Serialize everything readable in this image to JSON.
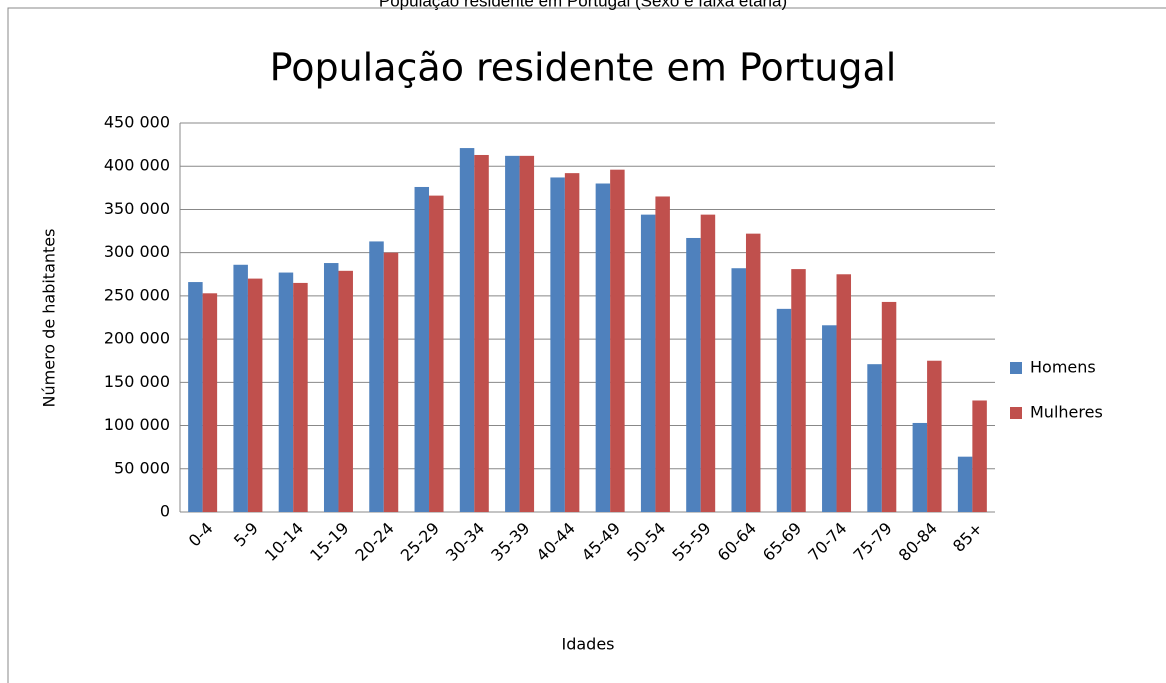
{
  "caption": "População residente em Portugal (Sexo e faixa etária)",
  "chart_data": {
    "type": "bar",
    "title": "População residente em Portugal",
    "x_label": "Idades",
    "y_label": "Número de habitantes",
    "categories": [
      "0-4",
      "5-9",
      "10-14",
      "15-19",
      "20-24",
      "25-29",
      "30-34",
      "35-39",
      "40-44",
      "45-49",
      "50-54",
      "55-59",
      "60-64",
      "65-69",
      "70-74",
      "75-79",
      "80-84",
      "85+"
    ],
    "series": [
      {
        "name": "Homens",
        "color": "#4f81bd",
        "values": [
          266000,
          286000,
          277000,
          288000,
          313000,
          376000,
          421000,
          412000,
          387000,
          380000,
          344000,
          317000,
          282000,
          235000,
          216000,
          171000,
          103000,
          64000
        ]
      },
      {
        "name": "Mulheres",
        "color": "#c0504d",
        "values": [
          253000,
          270000,
          265000,
          279000,
          300000,
          366000,
          413000,
          412000,
          392000,
          396000,
          365000,
          344000,
          322000,
          281000,
          275000,
          243000,
          175000,
          129000
        ]
      }
    ],
    "ylim": [
      0,
      450000
    ],
    "yticks": [
      0,
      {
        "value": 50000,
        "label": "50 000"
      },
      {
        "value": 100000,
        "label": "100 000"
      },
      {
        "value": 150000,
        "label": "150 000"
      },
      {
        "value": 200000,
        "label": "200 000"
      },
      {
        "value": 250000,
        "label": "250 000"
      },
      {
        "value": 300000,
        "label": "300 000"
      },
      {
        "value": 350000,
        "label": "350 000"
      },
      {
        "value": 400000,
        "label": "400 000"
      },
      {
        "value": 450000,
        "label": "450 000"
      }
    ],
    "grid": true,
    "legend": "right"
  }
}
